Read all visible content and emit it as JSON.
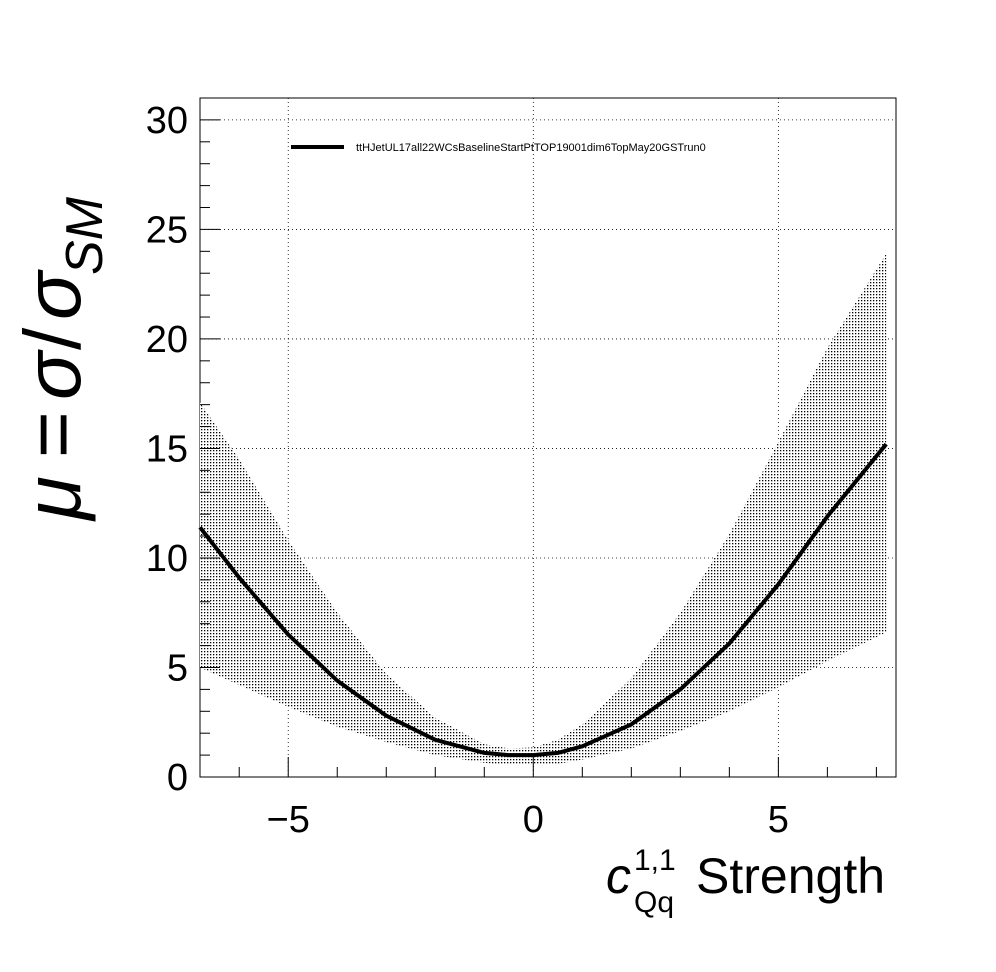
{
  "chart_data": {
    "type": "line",
    "xlabel": {
      "symbol": "c",
      "superscript": "1,1",
      "subscript": "Qq",
      "suffix": "Strength"
    },
    "ylabel": {
      "mu": "μ",
      "equals": "=",
      "sigma": "σ",
      "slash": "/",
      "sigma_sm": "σ",
      "sm_subscript": "SM"
    },
    "xlim": [
      -6.8,
      7.4
    ],
    "ylim": [
      0,
      31
    ],
    "x_ticks": [
      -5,
      0,
      5
    ],
    "x_tick_labels": [
      "−5",
      "0",
      "5"
    ],
    "y_ticks": [
      0,
      5,
      10,
      15,
      20,
      25,
      30
    ],
    "y_tick_labels": [
      "0",
      "5",
      "10",
      "15",
      "20",
      "25",
      "30"
    ],
    "grid": true,
    "legend_position": "top",
    "series": [
      {
        "name": "ttHJetUL17all22WCsBaselineStartPtTOP19001dim6TopMay20GSTrun0",
        "x": [
          -6.8,
          -6.0,
          -5.0,
          -4.0,
          -3.0,
          -2.0,
          -1.0,
          -0.5,
          0.0,
          0.5,
          1.0,
          2.0,
          3.0,
          4.0,
          5.0,
          6.0,
          7.2
        ],
        "y": [
          11.4,
          9.1,
          6.5,
          4.4,
          2.8,
          1.7,
          1.1,
          1.0,
          1.0,
          1.1,
          1.4,
          2.4,
          4.0,
          6.1,
          8.8,
          11.9,
          15.2
        ],
        "y_low": [
          5.0,
          4.2,
          3.2,
          2.3,
          1.6,
          1.0,
          0.65,
          0.55,
          0.55,
          0.6,
          0.8,
          1.3,
          2.1,
          3.0,
          4.1,
          5.3,
          6.6
        ],
        "y_high": [
          17.1,
          14.5,
          10.8,
          7.5,
          4.7,
          2.7,
          1.5,
          1.3,
          1.35,
          1.7,
          2.4,
          4.5,
          7.5,
          11.1,
          15.3,
          19.6,
          23.9
        ],
        "color": "#000000"
      }
    ]
  }
}
